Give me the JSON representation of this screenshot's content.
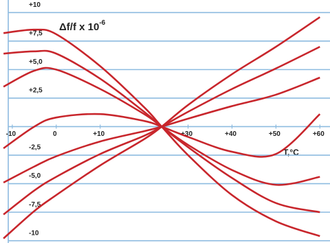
{
  "chart_data": {
    "type": "line",
    "title": "Δf/f x 10",
    "title_exponent": "-6",
    "x_label": "T,°C",
    "x": [
      -12,
      -5,
      0,
      10,
      20,
      24,
      30,
      40,
      50,
      60
    ],
    "series": [
      {
        "color": "#c8262c",
        "values": [
          8.2,
          8.5,
          8.1,
          5.3,
          1.7,
          0,
          -2.5,
          -6.0,
          -8.3,
          -9.6
        ]
      },
      {
        "color": "#c8262c",
        "values": [
          6.4,
          6.6,
          6.4,
          4.2,
          1.3,
          0,
          -1.8,
          -4.5,
          -6.7,
          -7.5
        ]
      },
      {
        "color": "#c8262c",
        "values": [
          3.5,
          4.9,
          5.0,
          3.3,
          1.1,
          0,
          -1.6,
          -3.8,
          -5.1,
          -4.4
        ]
      },
      {
        "color": "#c8262c",
        "values": [
          -1.9,
          0.0,
          0.8,
          1.1,
          0.5,
          0,
          -0.9,
          -2.2,
          -2.4,
          1.1
        ]
      },
      {
        "color": "#c8262c",
        "values": [
          -4.9,
          -3.5,
          -2.6,
          -1.3,
          -0.4,
          0,
          0.7,
          1.8,
          2.8,
          4.3
        ]
      },
      {
        "color": "#c8262c",
        "values": [
          -7.7,
          -5.6,
          -4.4,
          -2.4,
          -0.8,
          0,
          1.3,
          3.3,
          5.1,
          7.0
        ]
      },
      {
        "color": "#c8262c",
        "values": [
          -9.8,
          -7.4,
          -6.0,
          -3.4,
          -1.1,
          0,
          1.9,
          4.6,
          7.0,
          9.6
        ]
      }
    ],
    "xlim": [
      -12.8,
      62.3
    ],
    "ylim": [
      -10.2,
      11.1
    ],
    "xticks": [
      -10,
      0,
      {
        "value": 10,
        "label": "+10"
      },
      {
        "value": 30,
        "label": "+30"
      },
      {
        "value": 40,
        "label": "+40"
      },
      {
        "value": 50,
        "label": "+50"
      },
      {
        "value": 60,
        "label": "+60"
      }
    ],
    "yticks": [
      {
        "value": 10,
        "label": "+10"
      },
      {
        "value": 7.5,
        "label": "+7,5"
      },
      {
        "value": 5,
        "label": "+5,0"
      },
      {
        "value": 2.5,
        "label": "+2,5"
      },
      0,
      {
        "value": -2.5,
        "label": "-2,5"
      },
      {
        "value": -5,
        "label": "-5,0"
      },
      {
        "value": -7.5,
        "label": "-7,5"
      },
      -10
    ],
    "grid": true
  }
}
